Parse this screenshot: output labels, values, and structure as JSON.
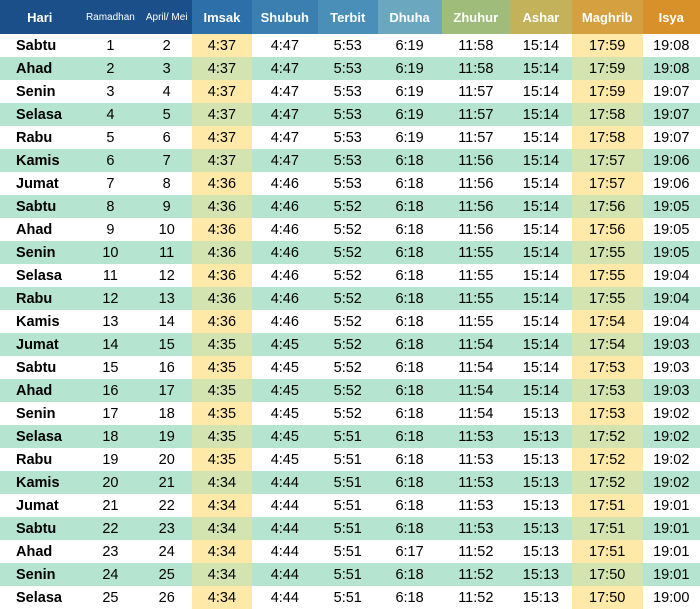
{
  "headers": {
    "hari": "Hari",
    "ramadhan": "Ramadhan",
    "aprilmei": "April/\nMei",
    "imsak": "Imsak",
    "shubuh": "Shubuh",
    "terbit": "Terbit",
    "dhuha": "Dhuha",
    "zhuhur": "Zhuhur",
    "ashar": "Ashar",
    "maghrib": "Maghrib",
    "isya": "Isya"
  },
  "rows": [
    {
      "hari": "Sabtu",
      "r": "1",
      "a": "2",
      "imsak": "4:37",
      "shubuh": "4:47",
      "terbit": "5:53",
      "dhuha": "6:19",
      "zhuhur": "11:58",
      "ashar": "15:14",
      "maghrib": "17:59",
      "isya": "19:08",
      "hl": false
    },
    {
      "hari": "Ahad",
      "r": "2",
      "a": "3",
      "imsak": "4:37",
      "shubuh": "4:47",
      "terbit": "5:53",
      "dhuha": "6:19",
      "zhuhur": "11:58",
      "ashar": "15:14",
      "maghrib": "17:59",
      "isya": "19:08",
      "hl": true
    },
    {
      "hari": "Senin",
      "r": "3",
      "a": "4",
      "imsak": "4:37",
      "shubuh": "4:47",
      "terbit": "5:53",
      "dhuha": "6:19",
      "zhuhur": "11:57",
      "ashar": "15:14",
      "maghrib": "17:59",
      "isya": "19:07",
      "hl": false
    },
    {
      "hari": "Selasa",
      "r": "4",
      "a": "5",
      "imsak": "4:37",
      "shubuh": "4:47",
      "terbit": "5:53",
      "dhuha": "6:19",
      "zhuhur": "11:57",
      "ashar": "15:14",
      "maghrib": "17:58",
      "isya": "19:07",
      "hl": true
    },
    {
      "hari": "Rabu",
      "r": "5",
      "a": "6",
      "imsak": "4:37",
      "shubuh": "4:47",
      "terbit": "5:53",
      "dhuha": "6:19",
      "zhuhur": "11:57",
      "ashar": "15:14",
      "maghrib": "17:58",
      "isya": "19:07",
      "hl": false
    },
    {
      "hari": "Kamis",
      "r": "6",
      "a": "7",
      "imsak": "4:37",
      "shubuh": "4:47",
      "terbit": "5:53",
      "dhuha": "6:18",
      "zhuhur": "11:56",
      "ashar": "15:14",
      "maghrib": "17:57",
      "isya": "19:06",
      "hl": true
    },
    {
      "hari": "Jumat",
      "r": "7",
      "a": "8",
      "imsak": "4:36",
      "shubuh": "4:46",
      "terbit": "5:53",
      "dhuha": "6:18",
      "zhuhur": "11:56",
      "ashar": "15:14",
      "maghrib": "17:57",
      "isya": "19:06",
      "hl": false
    },
    {
      "hari": "Sabtu",
      "r": "8",
      "a": "9",
      "imsak": "4:36",
      "shubuh": "4:46",
      "terbit": "5:52",
      "dhuha": "6:18",
      "zhuhur": "11:56",
      "ashar": "15:14",
      "maghrib": "17:56",
      "isya": "19:05",
      "hl": true
    },
    {
      "hari": "Ahad",
      "r": "9",
      "a": "10",
      "imsak": "4:36",
      "shubuh": "4:46",
      "terbit": "5:52",
      "dhuha": "6:18",
      "zhuhur": "11:56",
      "ashar": "15:14",
      "maghrib": "17:56",
      "isya": "19:05",
      "hl": false
    },
    {
      "hari": "Senin",
      "r": "10",
      "a": "11",
      "imsak": "4:36",
      "shubuh": "4:46",
      "terbit": "5:52",
      "dhuha": "6:18",
      "zhuhur": "11:55",
      "ashar": "15:14",
      "maghrib": "17:55",
      "isya": "19:05",
      "hl": true
    },
    {
      "hari": "Selasa",
      "r": "11",
      "a": "12",
      "imsak": "4:36",
      "shubuh": "4:46",
      "terbit": "5:52",
      "dhuha": "6:18",
      "zhuhur": "11:55",
      "ashar": "15:14",
      "maghrib": "17:55",
      "isya": "19:04",
      "hl": false
    },
    {
      "hari": "Rabu",
      "r": "12",
      "a": "13",
      "imsak": "4:36",
      "shubuh": "4:46",
      "terbit": "5:52",
      "dhuha": "6:18",
      "zhuhur": "11:55",
      "ashar": "15:14",
      "maghrib": "17:55",
      "isya": "19:04",
      "hl": true
    },
    {
      "hari": "Kamis",
      "r": "13",
      "a": "14",
      "imsak": "4:36",
      "shubuh": "4:46",
      "terbit": "5:52",
      "dhuha": "6:18",
      "zhuhur": "11:55",
      "ashar": "15:14",
      "maghrib": "17:54",
      "isya": "19:04",
      "hl": false
    },
    {
      "hari": "Jumat",
      "r": "14",
      "a": "15",
      "imsak": "4:35",
      "shubuh": "4:45",
      "terbit": "5:52",
      "dhuha": "6:18",
      "zhuhur": "11:54",
      "ashar": "15:14",
      "maghrib": "17:54",
      "isya": "19:03",
      "hl": true
    },
    {
      "hari": "Sabtu",
      "r": "15",
      "a": "16",
      "imsak": "4:35",
      "shubuh": "4:45",
      "terbit": "5:52",
      "dhuha": "6:18",
      "zhuhur": "11:54",
      "ashar": "15:14",
      "maghrib": "17:53",
      "isya": "19:03",
      "hl": false
    },
    {
      "hari": "Ahad",
      "r": "16",
      "a": "17",
      "imsak": "4:35",
      "shubuh": "4:45",
      "terbit": "5:52",
      "dhuha": "6:18",
      "zhuhur": "11:54",
      "ashar": "15:14",
      "maghrib": "17:53",
      "isya": "19:03",
      "hl": true
    },
    {
      "hari": "Senin",
      "r": "17",
      "a": "18",
      "imsak": "4:35",
      "shubuh": "4:45",
      "terbit": "5:52",
      "dhuha": "6:18",
      "zhuhur": "11:54",
      "ashar": "15:13",
      "maghrib": "17:53",
      "isya": "19:02",
      "hl": false
    },
    {
      "hari": "Selasa",
      "r": "18",
      "a": "19",
      "imsak": "4:35",
      "shubuh": "4:45",
      "terbit": "5:51",
      "dhuha": "6:18",
      "zhuhur": "11:53",
      "ashar": "15:13",
      "maghrib": "17:52",
      "isya": "19:02",
      "hl": true
    },
    {
      "hari": "Rabu",
      "r": "19",
      "a": "20",
      "imsak": "4:35",
      "shubuh": "4:45",
      "terbit": "5:51",
      "dhuha": "6:18",
      "zhuhur": "11:53",
      "ashar": "15:13",
      "maghrib": "17:52",
      "isya": "19:02",
      "hl": false
    },
    {
      "hari": "Kamis",
      "r": "20",
      "a": "21",
      "imsak": "4:34",
      "shubuh": "4:44",
      "terbit": "5:51",
      "dhuha": "6:18",
      "zhuhur": "11:53",
      "ashar": "15:13",
      "maghrib": "17:52",
      "isya": "19:02",
      "hl": true
    },
    {
      "hari": "Jumat",
      "r": "21",
      "a": "22",
      "imsak": "4:34",
      "shubuh": "4:44",
      "terbit": "5:51",
      "dhuha": "6:18",
      "zhuhur": "11:53",
      "ashar": "15:13",
      "maghrib": "17:51",
      "isya": "19:01",
      "hl": false
    },
    {
      "hari": "Sabtu",
      "r": "22",
      "a": "23",
      "imsak": "4:34",
      "shubuh": "4:44",
      "terbit": "5:51",
      "dhuha": "6:18",
      "zhuhur": "11:53",
      "ashar": "15:13",
      "maghrib": "17:51",
      "isya": "19:01",
      "hl": true
    },
    {
      "hari": "Ahad",
      "r": "23",
      "a": "24",
      "imsak": "4:34",
      "shubuh": "4:44",
      "terbit": "5:51",
      "dhuha": "6:17",
      "zhuhur": "11:52",
      "ashar": "15:13",
      "maghrib": "17:51",
      "isya": "19:01",
      "hl": false
    },
    {
      "hari": "Senin",
      "r": "24",
      "a": "25",
      "imsak": "4:34",
      "shubuh": "4:44",
      "terbit": "5:51",
      "dhuha": "6:18",
      "zhuhur": "11:52",
      "ashar": "15:13",
      "maghrib": "17:50",
      "isya": "19:01",
      "hl": true
    },
    {
      "hari": "Selasa",
      "r": "25",
      "a": "26",
      "imsak": "4:34",
      "shubuh": "4:44",
      "terbit": "5:51",
      "dhuha": "6:18",
      "zhuhur": "11:52",
      "ashar": "15:13",
      "maghrib": "17:50",
      "isya": "19:00",
      "hl": false
    }
  ]
}
